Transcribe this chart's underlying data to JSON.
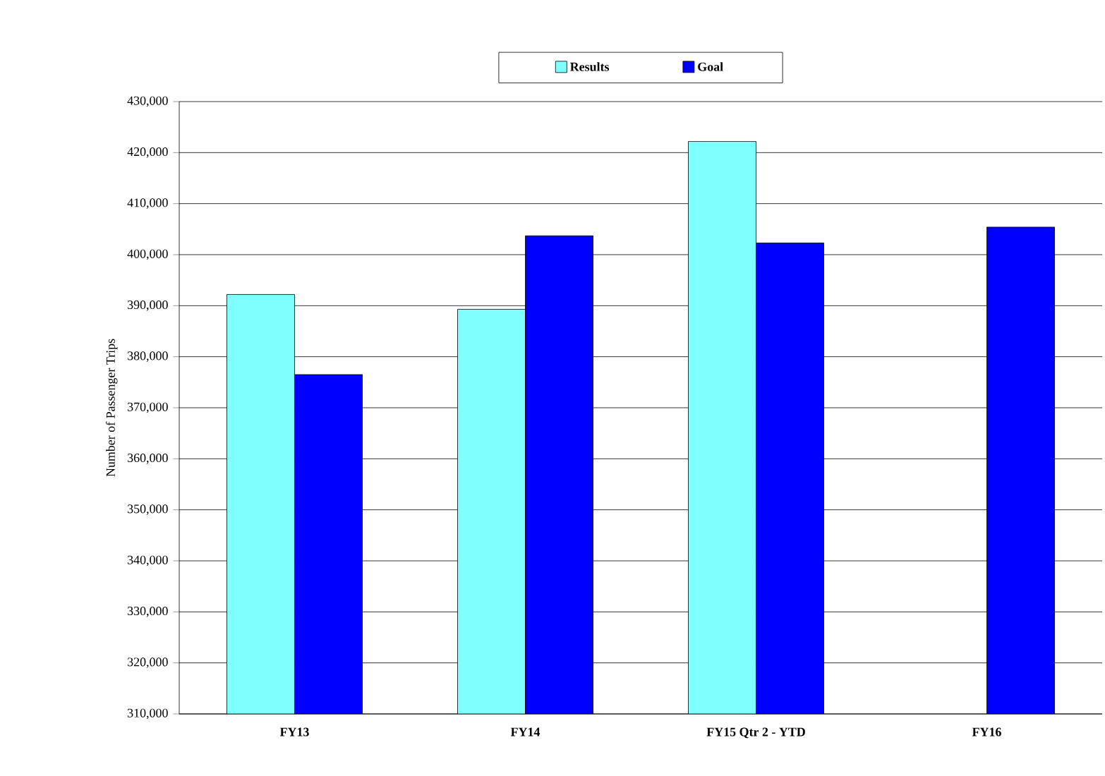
{
  "chart_data": {
    "type": "bar",
    "ylabel": "Number of Passenger Trips",
    "categories": [
      "FY13",
      "FY14",
      "FY15 Qtr 2 - YTD",
      "FY16"
    ],
    "series": [
      {
        "name": "Results",
        "color": "#80ffff",
        "values": [
          392200,
          389300,
          422200,
          null
        ]
      },
      {
        "name": "Goal",
        "color": "#0000ff",
        "values": [
          376500,
          403700,
          402300,
          405400
        ]
      }
    ],
    "ylim": [
      310000,
      430000
    ],
    "yticks": [
      {
        "value": 310000,
        "label": "310,000"
      },
      {
        "value": 320000,
        "label": "320,000"
      },
      {
        "value": 330000,
        "label": "330,000"
      },
      {
        "value": 340000,
        "label": "340,000"
      },
      {
        "value": 350000,
        "label": "350,000"
      },
      {
        "value": 360000,
        "label": "360,000"
      },
      {
        "value": 370000,
        "label": "370,000"
      },
      {
        "value": 380000,
        "label": "380,000"
      },
      {
        "value": 390000,
        "label": "390,000"
      },
      {
        "value": 400000,
        "label": "400,000"
      },
      {
        "value": 410000,
        "label": "410,000"
      },
      {
        "value": 420000,
        "label": "420,000"
      },
      {
        "value": 430000,
        "label": "430,000"
      }
    ],
    "grid": "y",
    "legend": "top"
  }
}
